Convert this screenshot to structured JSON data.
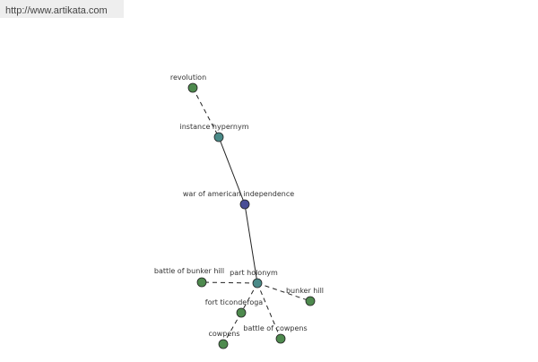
{
  "header": {
    "url": "http://www.artikata.com"
  },
  "nodes": [
    {
      "label": "revolution"
    },
    {
      "label": "instance hypernym"
    },
    {
      "label": "war of american independence"
    },
    {
      "label": "part holonym"
    },
    {
      "label": "battle of bunker hill"
    },
    {
      "label": "bunker hill"
    },
    {
      "label": "fort ticonderoga"
    },
    {
      "label": "battle of cowpens"
    },
    {
      "label": "cowpens"
    }
  ]
}
